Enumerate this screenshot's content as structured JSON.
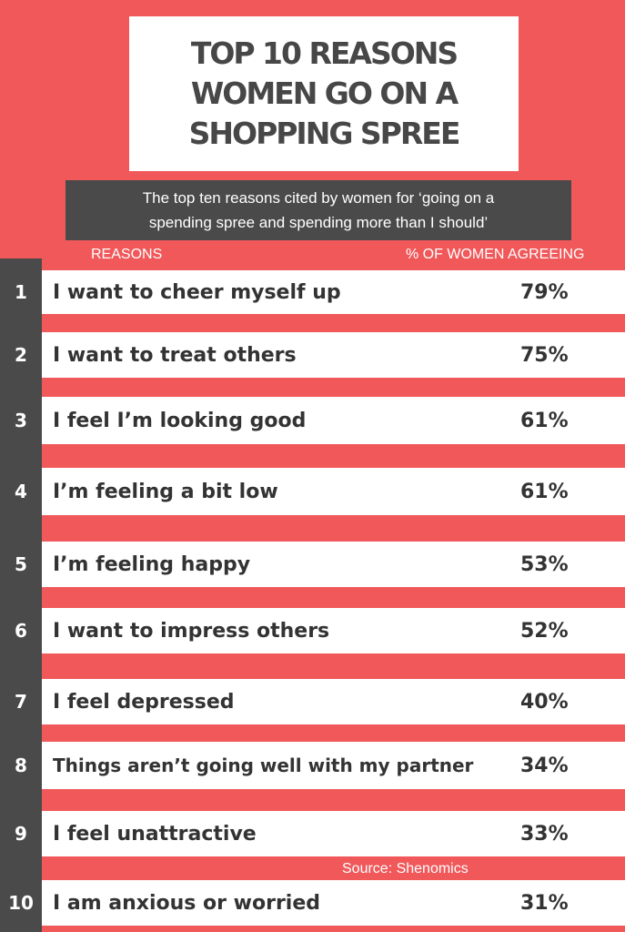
{
  "title_lines": [
    "TOP 10 REASONS",
    "WOMEN GO ON A",
    "SHOPPING SPREE"
  ],
  "subtitle_lines": [
    "The top ten reasons cited by women for ‘going on a",
    "spending spree and spending more than I should’"
  ],
  "column_headers": {
    "reasons": "REASONS",
    "percent": "% OF WOMEN AGREEING"
  },
  "source": "Source: Shenomics",
  "colors": {
    "background": "#f0585a",
    "dark": "#4a4a4a",
    "row": "#ffffff",
    "text": "#333333"
  },
  "chart_data": {
    "type": "table",
    "title": "TOP 10 REASONS WOMEN GO ON A SHOPPING SPREE",
    "subtitle": "The top ten reasons cited by women for ‘going on a spending spree and spending more than I should’",
    "columns": [
      "REASONS",
      "% OF WOMEN AGREEING"
    ],
    "rows": [
      {
        "rank": "1",
        "reason": "I want to cheer myself up",
        "percent": "79%"
      },
      {
        "rank": "2",
        "reason": "I want to treat others",
        "percent": "75%"
      },
      {
        "rank": "3",
        "reason": "I feel I’m looking good",
        "percent": "61%"
      },
      {
        "rank": "4",
        "reason": "I’m feeling a bit low",
        "percent": "61%"
      },
      {
        "rank": "5",
        "reason": "I’m feeling happy",
        "percent": "53%"
      },
      {
        "rank": "6",
        "reason": "I want to impress others",
        "percent": "52%"
      },
      {
        "rank": "7",
        "reason": "I feel depressed",
        "percent": "40%"
      },
      {
        "rank": "8",
        "reason": "Things aren’t going well with my partner",
        "percent": "34%"
      },
      {
        "rank": "9",
        "reason": "I feel unattractive",
        "percent": "33%"
      },
      {
        "rank": "10",
        "reason": "I am anxious or worried",
        "percent": "31%"
      }
    ]
  }
}
